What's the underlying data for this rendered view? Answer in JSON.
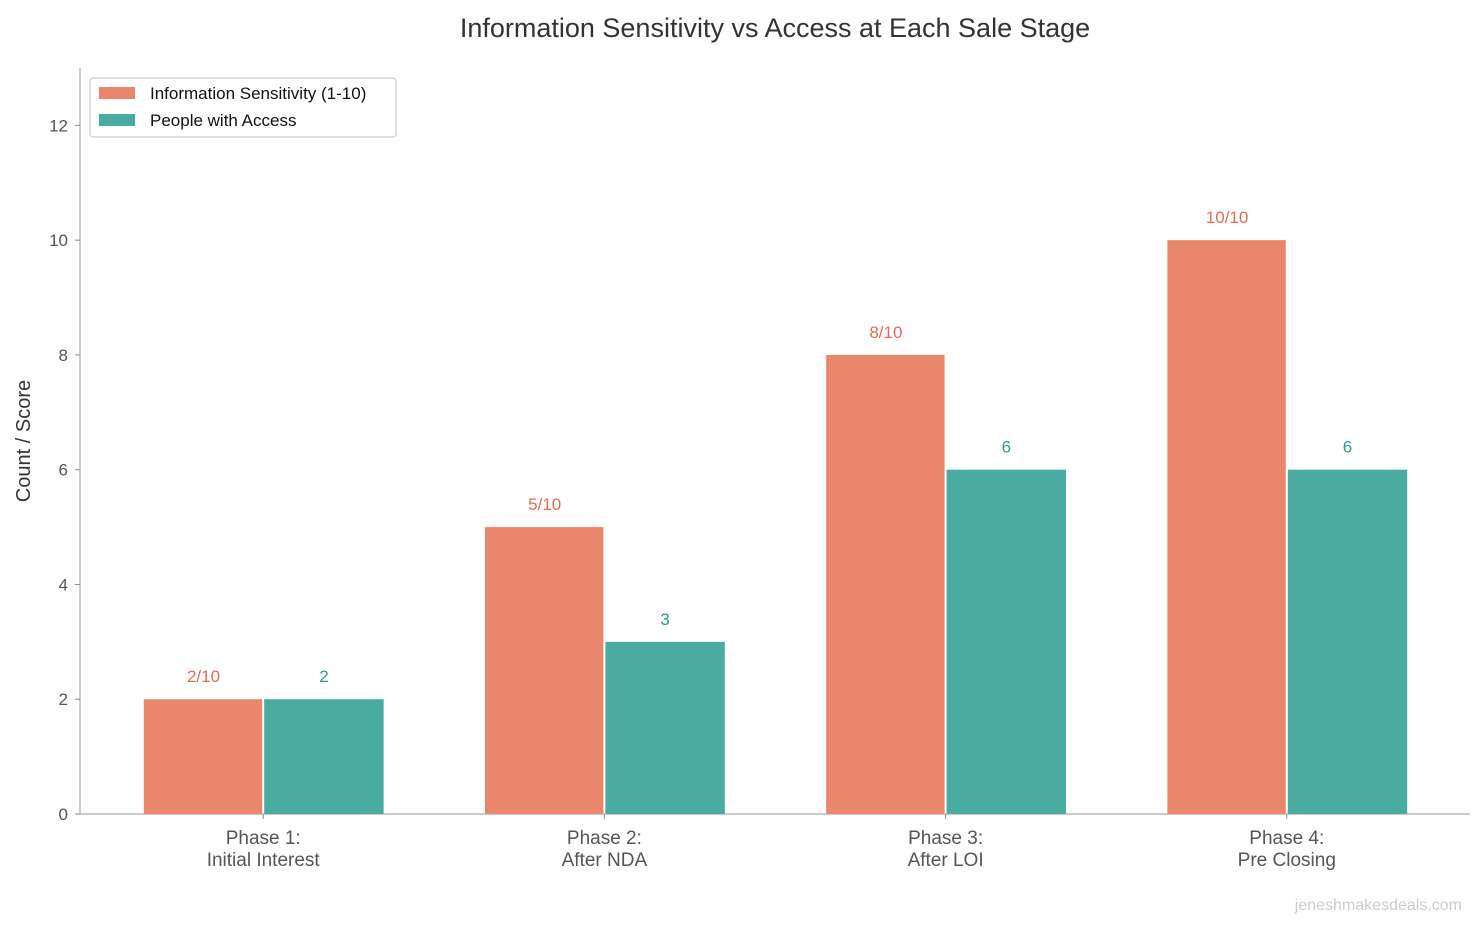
{
  "chart_data": {
    "type": "bar",
    "title": "Information Sensitivity vs Access at Each Sale Stage",
    "xlabel": "",
    "ylabel": "Count / Score",
    "ylim": [
      0,
      13
    ],
    "yticks": [
      0,
      2,
      4,
      6,
      8,
      10,
      12
    ],
    "grid": false,
    "legend_position": "top-left",
    "categories": [
      [
        "Phase 1:",
        "Initial Interest"
      ],
      [
        "Phase 2:",
        "After NDA"
      ],
      [
        "Phase 3:",
        "After LOI"
      ],
      [
        "Phase 4:",
        "Pre Closing"
      ]
    ],
    "series": [
      {
        "name": "Information Sensitivity (1-10)",
        "values": [
          2,
          5,
          8,
          10
        ],
        "labels": [
          "2/10",
          "5/10",
          "8/10",
          "10/10"
        ],
        "color": "#E9866C",
        "label_color": "#E56B50"
      },
      {
        "name": "People with Access",
        "values": [
          2,
          3,
          6,
          6
        ],
        "labels": [
          "2",
          "3",
          "6",
          "6"
        ],
        "color": "#4AABA0",
        "label_color": "#2E9A8D"
      }
    ]
  },
  "watermark": "jeneshmakesdeals.com"
}
